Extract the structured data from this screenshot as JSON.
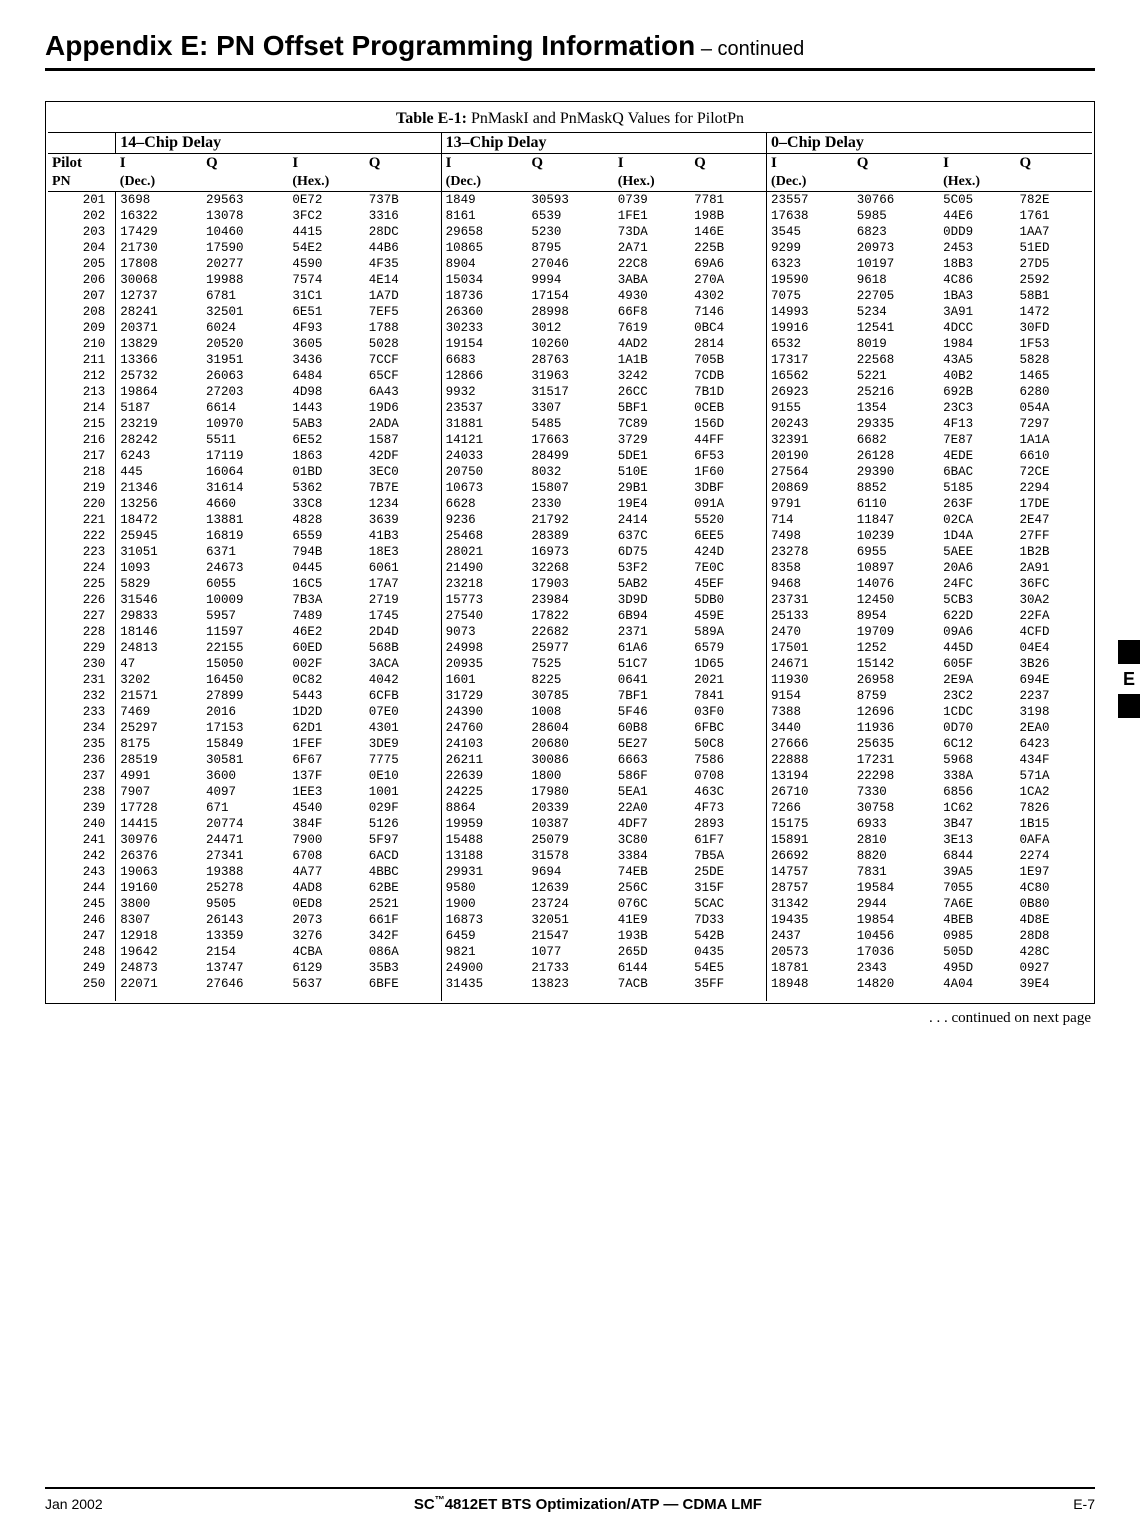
{
  "heading": {
    "title": "Appendix E: PN Offset Programming Information",
    "continued": " – continued"
  },
  "table": {
    "caption_bold": "Table E-1:",
    "caption_rest": " PnMaskI and PnMaskQ Values for PilotPn",
    "delay_headers": [
      "14–Chip Delay",
      "13–Chip Delay",
      "0–Chip Delay"
    ],
    "iq_labels": [
      "I",
      "Q",
      "I",
      "Q",
      "I",
      "Q",
      "I",
      "Q",
      "I",
      "Q",
      "I",
      "Q"
    ],
    "pilot_label": "Pilot",
    "pn_label": "PN",
    "dec_label": "(Dec.)",
    "hex_label": "(Hex.)",
    "rows": [
      [
        "201",
        "3698",
        "29563",
        "0E72",
        "737B",
        "1849",
        "30593",
        "0739",
        "7781",
        "23557",
        "30766",
        "5C05",
        "782E"
      ],
      [
        "202",
        "16322",
        "13078",
        "3FC2",
        "3316",
        "8161",
        "6539",
        "1FE1",
        "198B",
        "17638",
        "5985",
        "44E6",
        "1761"
      ],
      [
        "203",
        "17429",
        "10460",
        "4415",
        "28DC",
        "29658",
        "5230",
        "73DA",
        "146E",
        "3545",
        "6823",
        "0DD9",
        "1AA7"
      ],
      [
        "204",
        "21730",
        "17590",
        "54E2",
        "44B6",
        "10865",
        "8795",
        "2A71",
        "225B",
        "9299",
        "20973",
        "2453",
        "51ED"
      ],
      [
        "205",
        "17808",
        "20277",
        "4590",
        "4F35",
        "8904",
        "27046",
        "22C8",
        "69A6",
        "6323",
        "10197",
        "18B3",
        "27D5"
      ],
      [
        "206",
        "30068",
        "19988",
        "7574",
        "4E14",
        "15034",
        "9994",
        "3ABA",
        "270A",
        "19590",
        "9618",
        "4C86",
        "2592"
      ],
      [
        "207",
        "12737",
        "6781",
        "31C1",
        "1A7D",
        "18736",
        "17154",
        "4930",
        "4302",
        "7075",
        "22705",
        "1BA3",
        "58B1"
      ],
      [
        "208",
        "28241",
        "32501",
        "6E51",
        "7EF5",
        "26360",
        "28998",
        "66F8",
        "7146",
        "14993",
        "5234",
        "3A91",
        "1472"
      ],
      [
        "209",
        "20371",
        "6024",
        "4F93",
        "1788",
        "30233",
        "3012",
        "7619",
        "0BC4",
        "19916",
        "12541",
        "4DCC",
        "30FD"
      ],
      [
        "210",
        "13829",
        "20520",
        "3605",
        "5028",
        "19154",
        "10260",
        "4AD2",
        "2814",
        "6532",
        "8019",
        "1984",
        "1F53"
      ],
      [
        "211",
        "13366",
        "31951",
        "3436",
        "7CCF",
        "6683",
        "28763",
        "1A1B",
        "705B",
        "17317",
        "22568",
        "43A5",
        "5828"
      ],
      [
        "212",
        "25732",
        "26063",
        "6484",
        "65CF",
        "12866",
        "31963",
        "3242",
        "7CDB",
        "16562",
        "5221",
        "40B2",
        "1465"
      ],
      [
        "213",
        "19864",
        "27203",
        "4D98",
        "6A43",
        "9932",
        "31517",
        "26CC",
        "7B1D",
        "26923",
        "25216",
        "692B",
        "6280"
      ],
      [
        "214",
        "5187",
        "6614",
        "1443",
        "19D6",
        "23537",
        "3307",
        "5BF1",
        "0CEB",
        "9155",
        "1354",
        "23C3",
        "054A"
      ],
      [
        "215",
        "23219",
        "10970",
        "5AB3",
        "2ADA",
        "31881",
        "5485",
        "7C89",
        "156D",
        "20243",
        "29335",
        "4F13",
        "7297"
      ],
      [
        "216",
        "28242",
        "5511",
        "6E52",
        "1587",
        "14121",
        "17663",
        "3729",
        "44FF",
        "32391",
        "6682",
        "7E87",
        "1A1A"
      ],
      [
        "217",
        "6243",
        "17119",
        "1863",
        "42DF",
        "24033",
        "28499",
        "5DE1",
        "6F53",
        "20190",
        "26128",
        "4EDE",
        "6610"
      ],
      [
        "218",
        "445",
        "16064",
        "01BD",
        "3EC0",
        "20750",
        "8032",
        "510E",
        "1F60",
        "27564",
        "29390",
        "6BAC",
        "72CE"
      ],
      [
        "219",
        "21346",
        "31614",
        "5362",
        "7B7E",
        "10673",
        "15807",
        "29B1",
        "3DBF",
        "20869",
        "8852",
        "5185",
        "2294"
      ],
      [
        "220",
        "13256",
        "4660",
        "33C8",
        "1234",
        "6628",
        "2330",
        "19E4",
        "091A",
        "9791",
        "6110",
        "263F",
        "17DE"
      ],
      [
        "221",
        "18472",
        "13881",
        "4828",
        "3639",
        "9236",
        "21792",
        "2414",
        "5520",
        "714",
        "11847",
        "02CA",
        "2E47"
      ],
      [
        "222",
        "25945",
        "16819",
        "6559",
        "41B3",
        "25468",
        "28389",
        "637C",
        "6EE5",
        "7498",
        "10239",
        "1D4A",
        "27FF"
      ],
      [
        "223",
        "31051",
        "6371",
        "794B",
        "18E3",
        "28021",
        "16973",
        "6D75",
        "424D",
        "23278",
        "6955",
        "5AEE",
        "1B2B"
      ],
      [
        "224",
        "1093",
        "24673",
        "0445",
        "6061",
        "21490",
        "32268",
        "53F2",
        "7E0C",
        "8358",
        "10897",
        "20A6",
        "2A91"
      ],
      [
        "225",
        "5829",
        "6055",
        "16C5",
        "17A7",
        "23218",
        "17903",
        "5AB2",
        "45EF",
        "9468",
        "14076",
        "24FC",
        "36FC"
      ],
      [
        "226",
        "31546",
        "10009",
        "7B3A",
        "2719",
        "15773",
        "23984",
        "3D9D",
        "5DB0",
        "23731",
        "12450",
        "5CB3",
        "30A2"
      ],
      [
        "227",
        "29833",
        "5957",
        "7489",
        "1745",
        "27540",
        "17822",
        "6B94",
        "459E",
        "25133",
        "8954",
        "622D",
        "22FA"
      ],
      [
        "228",
        "18146",
        "11597",
        "46E2",
        "2D4D",
        "9073",
        "22682",
        "2371",
        "589A",
        "2470",
        "19709",
        "09A6",
        "4CFD"
      ],
      [
        "229",
        "24813",
        "22155",
        "60ED",
        "568B",
        "24998",
        "25977",
        "61A6",
        "6579",
        "17501",
        "1252",
        "445D",
        "04E4"
      ],
      [
        "230",
        "47",
        "15050",
        "002F",
        "3ACA",
        "20935",
        "7525",
        "51C7",
        "1D65",
        "24671",
        "15142",
        "605F",
        "3B26"
      ],
      [
        "231",
        "3202",
        "16450",
        "0C82",
        "4042",
        "1601",
        "8225",
        "0641",
        "2021",
        "11930",
        "26958",
        "2E9A",
        "694E"
      ],
      [
        "232",
        "21571",
        "27899",
        "5443",
        "6CFB",
        "31729",
        "30785",
        "7BF1",
        "7841",
        "9154",
        "8759",
        "23C2",
        "2237"
      ],
      [
        "233",
        "7469",
        "2016",
        "1D2D",
        "07E0",
        "24390",
        "1008",
        "5F46",
        "03F0",
        "7388",
        "12696",
        "1CDC",
        "3198"
      ],
      [
        "234",
        "25297",
        "17153",
        "62D1",
        "4301",
        "24760",
        "28604",
        "60B8",
        "6FBC",
        "3440",
        "11936",
        "0D70",
        "2EA0"
      ],
      [
        "235",
        "8175",
        "15849",
        "1FEF",
        "3DE9",
        "24103",
        "20680",
        "5E27",
        "50C8",
        "27666",
        "25635",
        "6C12",
        "6423"
      ],
      [
        "236",
        "28519",
        "30581",
        "6F67",
        "7775",
        "26211",
        "30086",
        "6663",
        "7586",
        "22888",
        "17231",
        "5968",
        "434F"
      ],
      [
        "237",
        "4991",
        "3600",
        "137F",
        "0E10",
        "22639",
        "1800",
        "586F",
        "0708",
        "13194",
        "22298",
        "338A",
        "571A"
      ],
      [
        "238",
        "7907",
        "4097",
        "1EE3",
        "1001",
        "24225",
        "17980",
        "5EA1",
        "463C",
        "26710",
        "7330",
        "6856",
        "1CA2"
      ],
      [
        "239",
        "17728",
        "671",
        "4540",
        "029F",
        "8864",
        "20339",
        "22A0",
        "4F73",
        "7266",
        "30758",
        "1C62",
        "7826"
      ],
      [
        "240",
        "14415",
        "20774",
        "384F",
        "5126",
        "19959",
        "10387",
        "4DF7",
        "2893",
        "15175",
        "6933",
        "3B47",
        "1B15"
      ],
      [
        "241",
        "30976",
        "24471",
        "7900",
        "5F97",
        "15488",
        "25079",
        "3C80",
        "61F7",
        "15891",
        "2810",
        "3E13",
        "0AFA"
      ],
      [
        "242",
        "26376",
        "27341",
        "6708",
        "6ACD",
        "13188",
        "31578",
        "3384",
        "7B5A",
        "26692",
        "8820",
        "6844",
        "2274"
      ],
      [
        "243",
        "19063",
        "19388",
        "4A77",
        "4BBC",
        "29931",
        "9694",
        "74EB",
        "25DE",
        "14757",
        "7831",
        "39A5",
        "1E97"
      ],
      [
        "244",
        "19160",
        "25278",
        "4AD8",
        "62BE",
        "9580",
        "12639",
        "256C",
        "315F",
        "28757",
        "19584",
        "7055",
        "4C80"
      ],
      [
        "245",
        "3800",
        "9505",
        "0ED8",
        "2521",
        "1900",
        "23724",
        "076C",
        "5CAC",
        "31342",
        "2944",
        "7A6E",
        "0B80"
      ],
      [
        "246",
        "8307",
        "26143",
        "2073",
        "661F",
        "16873",
        "32051",
        "41E9",
        "7D33",
        "19435",
        "19854",
        "4BEB",
        "4D8E"
      ],
      [
        "247",
        "12918",
        "13359",
        "3276",
        "342F",
        "6459",
        "21547",
        "193B",
        "542B",
        "2437",
        "10456",
        "0985",
        "28D8"
      ],
      [
        "248",
        "19642",
        "2154",
        "4CBA",
        "086A",
        "9821",
        "1077",
        "265D",
        "0435",
        "20573",
        "17036",
        "505D",
        "428C"
      ],
      [
        "249",
        "24873",
        "13747",
        "6129",
        "35B3",
        "24900",
        "21733",
        "6144",
        "54E5",
        "18781",
        "2343",
        "495D",
        "0927"
      ],
      [
        "250",
        "22071",
        "27646",
        "5637",
        "6BFE",
        "31435",
        "13823",
        "7ACB",
        "35FF",
        "18948",
        "14820",
        "4A04",
        "39E4"
      ]
    ]
  },
  "continued_text": ". . . continued on next page",
  "footer": {
    "left": "Jan 2002",
    "center_prefix": "SC",
    "center_tm": "™",
    "center_rest": "4812ET BTS Optimization/ATP — CDMA LMF",
    "right": "E-7"
  },
  "side_label": "E"
}
